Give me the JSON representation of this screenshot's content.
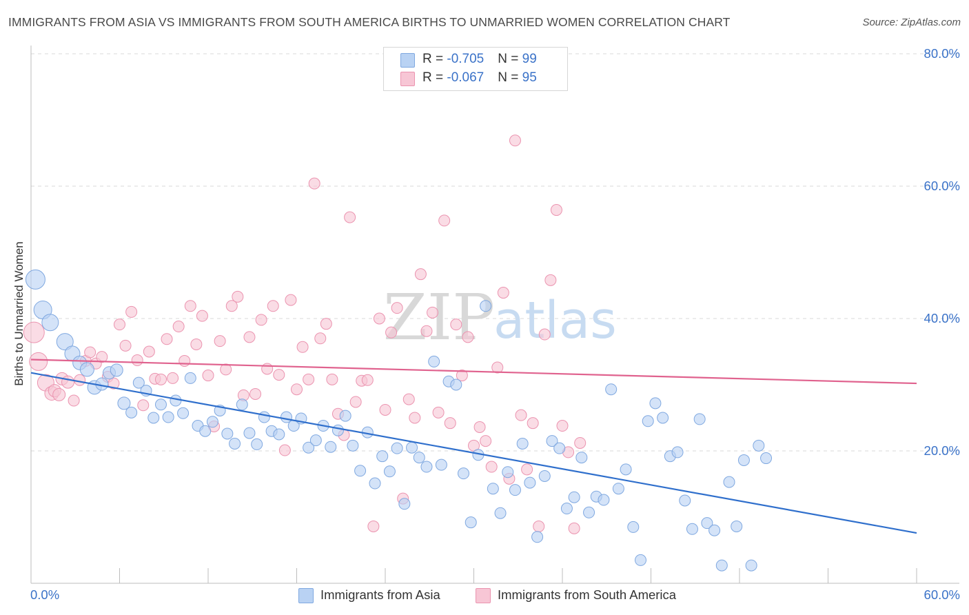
{
  "title": "IMMIGRANTS FROM ASIA VS IMMIGRANTS FROM SOUTH AMERICA BIRTHS TO UNMARRIED WOMEN CORRELATION CHART",
  "source": "Source: ZipAtlas.com",
  "watermark": {
    "zip": "ZIP",
    "atlas": "atlas"
  },
  "legend": {
    "asia": {
      "r_label": "R = ",
      "r_value": "-0.705",
      "n_label": "N = ",
      "n_value": "99"
    },
    "south_america": {
      "r_label": "R = ",
      "r_value": "-0.067",
      "n_label": "N = ",
      "n_value": "95"
    }
  },
  "bottom_legend": {
    "asia": "Immigrants from Asia",
    "south_america": "Immigrants from South America"
  },
  "colors": {
    "asia_fill": "#b9d2f3",
    "asia_stroke": "#7fa8e0",
    "asia_line": "#2f6fcc",
    "sa_fill": "#f7c6d5",
    "sa_stroke": "#eb93af",
    "sa_line": "#e0628e",
    "grid": "#d9d9d9",
    "tick_label": "#3a72c8",
    "watermark": "#d8d8d8",
    "watermark_atlas": "#c7dbf1"
  },
  "chart_data": {
    "type": "scatter",
    "title": "IMMIGRANTS FROM ASIA VS IMMIGRANTS FROM SOUTH AMERICA BIRTHS TO UNMARRIED WOMEN CORRELATION CHART",
    "xlabel": "",
    "ylabel": "Births to Unmarried Women",
    "xlim": [
      0,
      60
    ],
    "ylim": [
      0,
      80
    ],
    "x_tick_labels": [
      "0.0%",
      "60.0%"
    ],
    "y_ticks": [
      20,
      40,
      60,
      80
    ],
    "y_tick_labels": [
      "20.0%",
      "40.0%",
      "60.0%",
      "80.0%"
    ],
    "series": [
      {
        "name": "Immigrants from Asia",
        "trend": {
          "x": [
            0,
            60
          ],
          "y": [
            31.8,
            7.6
          ]
        },
        "points": [
          [
            0.3,
            45.9,
            14
          ],
          [
            0.8,
            41.3,
            13
          ],
          [
            1.3,
            39.4,
            12
          ],
          [
            2.3,
            36.5,
            12
          ],
          [
            2.8,
            34.7,
            11
          ],
          [
            3.3,
            33.3,
            10
          ],
          [
            3.8,
            32.3,
            10
          ],
          [
            4.3,
            29.6,
            10
          ],
          [
            4.8,
            30.1,
            9
          ],
          [
            5.3,
            31.8,
            9
          ],
          [
            5.8,
            32.2,
            9
          ],
          [
            6.3,
            27.2,
            9
          ],
          [
            6.8,
            25.8,
            8
          ],
          [
            7.3,
            30.3,
            8
          ],
          [
            7.8,
            29.1,
            8
          ],
          [
            8.3,
            25.0,
            8
          ],
          [
            8.8,
            27.0,
            8
          ],
          [
            9.3,
            25.1,
            8
          ],
          [
            9.8,
            27.6,
            8
          ],
          [
            10.3,
            25.7,
            8
          ],
          [
            10.8,
            31.0,
            8
          ],
          [
            11.3,
            23.8,
            8
          ],
          [
            11.8,
            23.0,
            8
          ],
          [
            12.3,
            24.4,
            8
          ],
          [
            12.8,
            26.1,
            8
          ],
          [
            13.3,
            22.6,
            8
          ],
          [
            13.8,
            21.1,
            8
          ],
          [
            14.3,
            27.0,
            8
          ],
          [
            14.8,
            22.7,
            8
          ],
          [
            15.3,
            21.0,
            8
          ],
          [
            15.8,
            25.1,
            8
          ],
          [
            16.3,
            23.0,
            8
          ],
          [
            16.8,
            22.5,
            8
          ],
          [
            17.3,
            25.1,
            8
          ],
          [
            17.8,
            23.8,
            8
          ],
          [
            18.3,
            24.9,
            8
          ],
          [
            18.8,
            20.5,
            8
          ],
          [
            19.3,
            21.6,
            8
          ],
          [
            19.8,
            23.8,
            8
          ],
          [
            20.3,
            20.6,
            8
          ],
          [
            20.8,
            23.1,
            8
          ],
          [
            21.3,
            25.3,
            8
          ],
          [
            21.8,
            20.8,
            8
          ],
          [
            22.3,
            17.0,
            8
          ],
          [
            22.8,
            22.8,
            8
          ],
          [
            23.3,
            15.1,
            8
          ],
          [
            23.8,
            19.2,
            8
          ],
          [
            24.3,
            16.9,
            8
          ],
          [
            24.8,
            20.4,
            8
          ],
          [
            25.3,
            12.0,
            8
          ],
          [
            25.8,
            20.5,
            8
          ],
          [
            26.3,
            19.0,
            8
          ],
          [
            26.8,
            17.6,
            8
          ],
          [
            27.3,
            33.5,
            8
          ],
          [
            27.8,
            17.9,
            8
          ],
          [
            28.3,
            30.5,
            8
          ],
          [
            28.8,
            30.0,
            8
          ],
          [
            29.3,
            16.6,
            8
          ],
          [
            29.8,
            9.2,
            8
          ],
          [
            30.3,
            19.4,
            8
          ],
          [
            30.8,
            41.9,
            8
          ],
          [
            31.3,
            14.3,
            8
          ],
          [
            31.8,
            10.6,
            8
          ],
          [
            32.3,
            16.8,
            8
          ],
          [
            32.8,
            14.1,
            8
          ],
          [
            33.3,
            21.1,
            8
          ],
          [
            33.8,
            15.2,
            8
          ],
          [
            34.3,
            7.0,
            8
          ],
          [
            34.8,
            16.2,
            8
          ],
          [
            35.3,
            21.5,
            8
          ],
          [
            35.8,
            20.4,
            8
          ],
          [
            36.3,
            11.3,
            8
          ],
          [
            36.8,
            13.0,
            8
          ],
          [
            37.3,
            19.0,
            8
          ],
          [
            37.8,
            10.7,
            8
          ],
          [
            38.3,
            13.1,
            8
          ],
          [
            38.8,
            12.6,
            8
          ],
          [
            39.3,
            29.3,
            8
          ],
          [
            39.8,
            14.3,
            8
          ],
          [
            40.3,
            17.2,
            8
          ],
          [
            40.8,
            8.5,
            8
          ],
          [
            41.3,
            3.5,
            8
          ],
          [
            41.8,
            24.5,
            8
          ],
          [
            42.3,
            27.2,
            8
          ],
          [
            42.8,
            25.0,
            8
          ],
          [
            43.3,
            19.2,
            8
          ],
          [
            43.8,
            19.8,
            8
          ],
          [
            44.3,
            12.5,
            8
          ],
          [
            44.8,
            8.2,
            8
          ],
          [
            45.3,
            24.8,
            8
          ],
          [
            45.8,
            9.1,
            8
          ],
          [
            46.3,
            8.0,
            8
          ],
          [
            46.8,
            2.7,
            8
          ],
          [
            47.3,
            15.3,
            8
          ],
          [
            47.8,
            8.6,
            8
          ],
          [
            48.3,
            18.6,
            8
          ],
          [
            48.8,
            2.7,
            8
          ],
          [
            49.3,
            20.8,
            8
          ],
          [
            49.8,
            18.9,
            8
          ]
        ]
      },
      {
        "name": "Immigrants from South America",
        "trend": {
          "x": [
            0,
            60
          ],
          "y": [
            33.8,
            30.2
          ]
        },
        "points": [
          [
            0.2,
            37.9,
            15
          ],
          [
            0.5,
            33.5,
            13
          ],
          [
            1.0,
            30.3,
            12
          ],
          [
            1.4,
            28.7,
            10
          ],
          [
            1.6,
            29.1,
            9
          ],
          [
            1.9,
            28.5,
            9
          ],
          [
            2.1,
            30.9,
            9
          ],
          [
            2.5,
            30.4,
            9
          ],
          [
            2.9,
            27.6,
            8
          ],
          [
            3.3,
            30.7,
            8
          ],
          [
            3.7,
            33.6,
            8
          ],
          [
            4.0,
            34.9,
            8
          ],
          [
            4.4,
            33.2,
            8
          ],
          [
            4.8,
            34.2,
            8
          ],
          [
            5.2,
            31.2,
            8
          ],
          [
            5.6,
            30.2,
            8
          ],
          [
            6.0,
            39.1,
            8
          ],
          [
            6.4,
            35.9,
            8
          ],
          [
            6.8,
            41.0,
            8
          ],
          [
            7.2,
            33.7,
            8
          ],
          [
            7.6,
            26.9,
            8
          ],
          [
            8.0,
            35.0,
            8
          ],
          [
            8.4,
            30.9,
            8
          ],
          [
            8.8,
            30.8,
            8
          ],
          [
            9.2,
            36.9,
            8
          ],
          [
            9.6,
            31.0,
            8
          ],
          [
            10.0,
            38.8,
            8
          ],
          [
            10.4,
            33.6,
            8
          ],
          [
            10.8,
            41.9,
            8
          ],
          [
            11.2,
            36.1,
            8
          ],
          [
            11.6,
            40.4,
            8
          ],
          [
            12.0,
            31.4,
            8
          ],
          [
            12.4,
            23.7,
            8
          ],
          [
            12.8,
            36.6,
            8
          ],
          [
            13.2,
            32.3,
            8
          ],
          [
            13.6,
            41.9,
            8
          ],
          [
            14.0,
            43.3,
            8
          ],
          [
            14.4,
            28.4,
            8
          ],
          [
            14.8,
            37.2,
            8
          ],
          [
            15.2,
            28.6,
            8
          ],
          [
            15.6,
            39.8,
            8
          ],
          [
            16.0,
            32.4,
            8
          ],
          [
            16.4,
            41.9,
            8
          ],
          [
            16.8,
            31.5,
            8
          ],
          [
            17.2,
            20.1,
            8
          ],
          [
            17.6,
            42.8,
            8
          ],
          [
            18.0,
            29.3,
            8
          ],
          [
            18.4,
            35.7,
            8
          ],
          [
            18.8,
            30.8,
            8
          ],
          [
            19.2,
            60.4,
            8
          ],
          [
            19.6,
            37.0,
            8
          ],
          [
            20.0,
            39.2,
            8
          ],
          [
            20.4,
            30.8,
            8
          ],
          [
            20.8,
            25.6,
            8
          ],
          [
            21.2,
            22.4,
            8
          ],
          [
            21.6,
            55.3,
            8
          ],
          [
            22.0,
            27.4,
            8
          ],
          [
            22.4,
            30.6,
            8
          ],
          [
            22.8,
            30.7,
            8
          ],
          [
            23.2,
            8.6,
            8
          ],
          [
            23.6,
            40.0,
            8
          ],
          [
            24.0,
            26.2,
            8
          ],
          [
            24.4,
            37.9,
            8
          ],
          [
            24.8,
            41.6,
            8
          ],
          [
            25.2,
            12.8,
            8
          ],
          [
            25.6,
            27.8,
            8
          ],
          [
            26.0,
            25.0,
            8
          ],
          [
            26.4,
            46.7,
            8
          ],
          [
            26.8,
            38.1,
            8
          ],
          [
            27.2,
            40.9,
            8
          ],
          [
            27.6,
            25.8,
            8
          ],
          [
            28.0,
            54.8,
            8
          ],
          [
            28.4,
            24.2,
            8
          ],
          [
            28.8,
            39.1,
            8
          ],
          [
            29.2,
            31.4,
            8
          ],
          [
            29.6,
            37.2,
            8
          ],
          [
            30.0,
            20.8,
            8
          ],
          [
            30.4,
            23.6,
            8
          ],
          [
            30.8,
            21.5,
            8
          ],
          [
            31.2,
            17.6,
            8
          ],
          [
            31.6,
            32.6,
            8
          ],
          [
            32.0,
            43.9,
            8
          ],
          [
            32.4,
            15.8,
            8
          ],
          [
            32.8,
            66.9,
            8
          ],
          [
            33.2,
            25.4,
            8
          ],
          [
            33.6,
            17.2,
            8
          ],
          [
            34.0,
            24.2,
            8
          ],
          [
            34.4,
            8.6,
            8
          ],
          [
            34.8,
            37.6,
            8
          ],
          [
            35.2,
            45.8,
            8
          ],
          [
            35.6,
            56.4,
            8
          ],
          [
            36.0,
            23.8,
            8
          ],
          [
            36.4,
            19.8,
            8
          ],
          [
            36.8,
            8.3,
            8
          ],
          [
            37.2,
            21.2,
            8
          ]
        ]
      }
    ]
  }
}
